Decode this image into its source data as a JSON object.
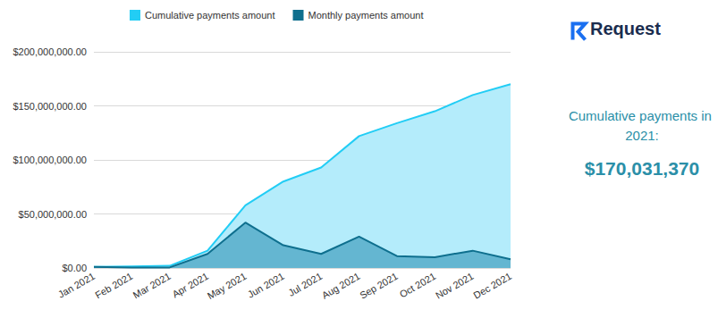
{
  "chart_data": {
    "type": "area",
    "categories": [
      "Jan 2021",
      "Feb 2021",
      "Mar 2021",
      "Apr 2021",
      "May 2021",
      "Jun 2021",
      "Jul 2021",
      "Aug 2021",
      "Sep 2021",
      "Oct 2021",
      "Nov 2021",
      "Dec 2021"
    ],
    "series": [
      {
        "name": "Cumulative payments amount",
        "color": "#22cdf5",
        "values": [
          1000000,
          1500000,
          2000000,
          16000000,
          58000000,
          80000000,
          93000000,
          122000000,
          134000000,
          145000000,
          160000000,
          170031370
        ]
      },
      {
        "name": "Monthly payments amount",
        "color": "#0e6f8e",
        "values": [
          1000000,
          500000,
          500000,
          13000000,
          42000000,
          21000000,
          13000000,
          29000000,
          11000000,
          10000000,
          16000000,
          8000000
        ]
      }
    ],
    "ylim": [
      0,
      200000000
    ],
    "yticks": [
      {
        "value": 0,
        "label": "$0.00"
      },
      {
        "value": 50000000,
        "label": "$50,000,000.00"
      },
      {
        "value": 100000000,
        "label": "$100,000,000.00"
      },
      {
        "value": 150000000,
        "label": "$150,000,000.00"
      },
      {
        "value": 200000000,
        "label": "$200,000,000.00"
      }
    ],
    "grid": true,
    "legend": "top-left",
    "stacked": false,
    "annotations": [
      "Request",
      "Cumulative payments in 2021:",
      "$170,031,370"
    ]
  }
}
